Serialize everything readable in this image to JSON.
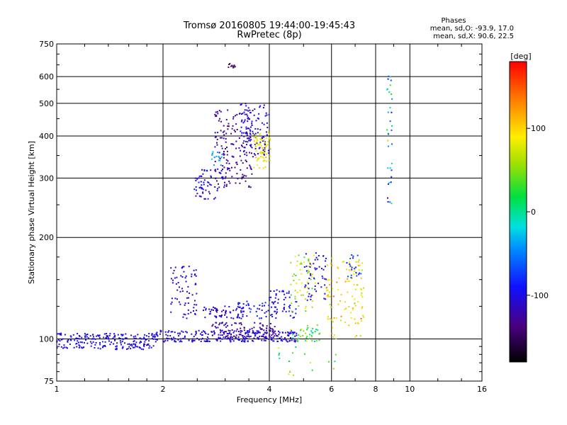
{
  "chart_data": {
    "type": "scatter",
    "title": "Tromsø 20160805 19:44:00-19:45:43",
    "subtitle": "RwPretec (8p)",
    "xlabel": "Frequency [MHz]",
    "ylabel": "Stationary phase Virtual Height [km]",
    "x_scale": "log",
    "y_scale": "log",
    "xlim": [
      1,
      16
    ],
    "ylim": [
      75,
      750
    ],
    "x_ticks": [
      1,
      2,
      4,
      6,
      8,
      10,
      16
    ],
    "y_ticks": [
      75,
      100,
      200,
      300,
      400,
      500,
      600,
      750
    ],
    "x_tick_labels": [
      "1",
      "2",
      "4",
      "6",
      "8",
      "10",
      "16"
    ],
    "y_tick_labels": [
      "75",
      "100",
      "200",
      "300",
      "400",
      "500",
      "600",
      "750"
    ],
    "grid": true,
    "phase_info": {
      "heading": "Phases",
      "line_o": "mean, sd,O: -93.9, 17.0",
      "line_x": "mean, sd,X:  90.6, 22.5"
    },
    "colorbar": {
      "label": "[deg]",
      "range": [
        -180,
        180
      ],
      "ticks": [
        100,
        0,
        -100
      ],
      "tick_labels": [
        "100",
        "0",
        "-100"
      ]
    },
    "clusters": [
      {
        "x0": 1.0,
        "x1": 1.9,
        "y0": 93,
        "y1": 104,
        "phase_mean": -100,
        "phase_sd": 15,
        "count": 220
      },
      {
        "x0": 1.9,
        "x1": 4.8,
        "y0": 98,
        "y1": 106,
        "phase_mean": -105,
        "phase_sd": 15,
        "count": 260
      },
      {
        "x0": 2.1,
        "x1": 2.5,
        "y0": 115,
        "y1": 165,
        "phase_mean": -108,
        "phase_sd": 10,
        "count": 70
      },
      {
        "x0": 2.7,
        "x1": 4.2,
        "y0": 100,
        "y1": 112,
        "phase_mean": -125,
        "phase_sd": 18,
        "count": 110
      },
      {
        "x0": 2.6,
        "x1": 3.4,
        "y0": 115,
        "y1": 125,
        "phase_mean": -112,
        "phase_sd": 15,
        "count": 60
      },
      {
        "x0": 3.2,
        "x1": 4.8,
        "y0": 115,
        "y1": 130,
        "phase_mean": -90,
        "phase_sd": 20,
        "count": 60
      },
      {
        "x0": 4.0,
        "x1": 4.6,
        "y0": 120,
        "y1": 140,
        "phase_mean": -100,
        "phase_sd": 15,
        "count": 35
      },
      {
        "x0": 4.6,
        "x1": 5.6,
        "y0": 98,
        "y1": 110,
        "phase_mean": 30,
        "phase_sd": 35,
        "count": 40
      },
      {
        "x0": 4.6,
        "x1": 5.4,
        "y0": 120,
        "y1": 180,
        "phase_mean": 70,
        "phase_sd": 45,
        "count": 60
      },
      {
        "x0": 5.0,
        "x1": 5.8,
        "y0": 130,
        "y1": 180,
        "phase_mean": -100,
        "phase_sd": 20,
        "count": 50
      },
      {
        "x0": 5.8,
        "x1": 7.4,
        "y0": 100,
        "y1": 175,
        "phase_mean": 95,
        "phase_sd": 40,
        "count": 110
      },
      {
        "x0": 6.6,
        "x1": 7.3,
        "y0": 150,
        "y1": 178,
        "phase_mean": -75,
        "phase_sd": 20,
        "count": 20
      },
      {
        "x0": 2.45,
        "x1": 2.95,
        "y0": 260,
        "y1": 320,
        "phase_mean": -105,
        "phase_sd": 20,
        "count": 60
      },
      {
        "x0": 2.7,
        "x1": 2.95,
        "y0": 320,
        "y1": 360,
        "phase_mean": -40,
        "phase_sd": 10,
        "count": 15
      },
      {
        "x0": 2.8,
        "x1": 3.6,
        "y0": 280,
        "y1": 480,
        "phase_mean": -125,
        "phase_sd": 15,
        "count": 170
      },
      {
        "x0": 3.3,
        "x1": 4.0,
        "y0": 350,
        "y1": 500,
        "phase_mean": -105,
        "phase_sd": 18,
        "count": 110
      },
      {
        "x0": 3.6,
        "x1": 4.05,
        "y0": 320,
        "y1": 410,
        "phase_mean": 85,
        "phase_sd": 25,
        "count": 65
      },
      {
        "x0": 3.05,
        "x1": 3.2,
        "y0": 635,
        "y1": 660,
        "phase_mean": -150,
        "phase_sd": 10,
        "count": 10
      },
      {
        "x0": 8.6,
        "x1": 8.9,
        "y0": 240,
        "y1": 610,
        "phase_mean": -40,
        "phase_sd": 80,
        "count": 35
      },
      {
        "x0": 4.2,
        "x1": 6.2,
        "y0": 78,
        "y1": 95,
        "phase_mean": 50,
        "phase_sd": 80,
        "count": 18
      }
    ]
  }
}
